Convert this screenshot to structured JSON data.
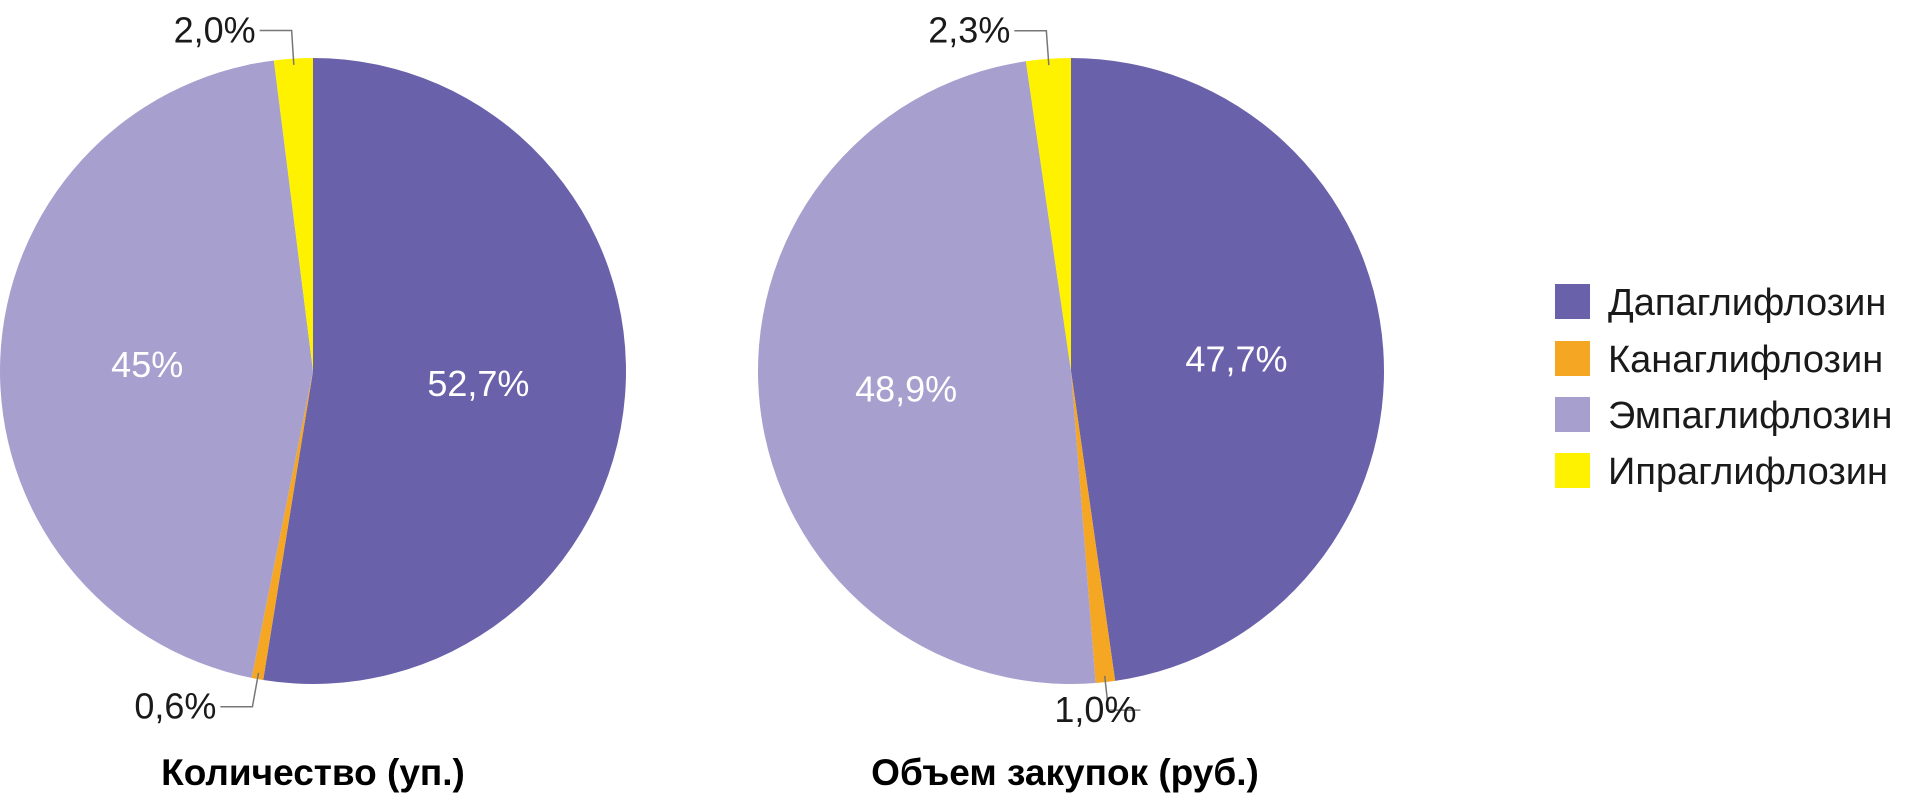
{
  "chart_data": [
    {
      "type": "pie",
      "title": "Количество (уп.)",
      "slices": [
        {
          "label": "Дапаглифлозин",
          "value": 52.7,
          "display": "52,7%",
          "color": "#6A61AB"
        },
        {
          "label": "Канаглифлозин",
          "value": 0.6,
          "display": "0,6%",
          "color": "#F5A623"
        },
        {
          "label": "Эмпаглифлозин",
          "value": 45.0,
          "display": "45%",
          "color": "#A7A0CF"
        },
        {
          "label": "Ипраглифлозин",
          "value": 2.0,
          "display": "2,0%",
          "color": "#FFF200"
        }
      ]
    },
    {
      "type": "pie",
      "title": "Объем закупок (руб.)",
      "slices": [
        {
          "label": "Дапаглифлозин",
          "value": 47.7,
          "display": "47,7%",
          "color": "#6A61AB"
        },
        {
          "label": "Канаглифлозин",
          "value": 1.0,
          "display": "1,0%",
          "color": "#F5A623"
        },
        {
          "label": "Эмпаглифлозин",
          "value": 48.9,
          "display": "48,9%",
          "color": "#A7A0CF"
        },
        {
          "label": "Ипраглифлозин",
          "value": 2.3,
          "display": "2,3%",
          "color": "#FFF200"
        }
      ]
    }
  ],
  "legend": {
    "placement": "right",
    "items": [
      {
        "label": "Дапаглифлозин",
        "color": "#6A61AB"
      },
      {
        "label": "Канаглифлозин",
        "color": "#F5A623"
      },
      {
        "label": "Эмпаглифлозин",
        "color": "#A7A0CF"
      },
      {
        "label": "Ипраглифлозин",
        "color": "#FFF200"
      }
    ]
  },
  "colors": {
    "inside_label": "#ffffff",
    "outside_label": "#1a1a1a",
    "leader_line": "#777777"
  }
}
